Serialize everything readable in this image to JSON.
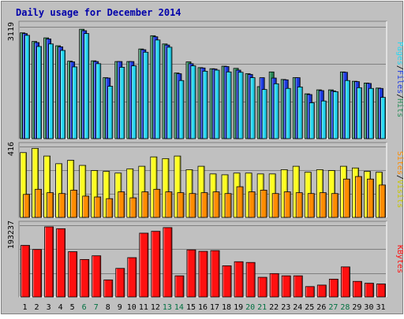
{
  "chart_data": {
    "type": "bar",
    "title": "Daily usage for December 2014",
    "x": [
      "1",
      "2",
      "3",
      "4",
      "5",
      "6",
      "7",
      "8",
      "9",
      "10",
      "11",
      "12",
      "13",
      "14",
      "15",
      "16",
      "17",
      "18",
      "19",
      "20",
      "21",
      "22",
      "23",
      "24",
      "25",
      "26",
      "27",
      "28",
      "29",
      "30",
      "31"
    ],
    "weekend_days": [
      "6",
      "7",
      "13",
      "14",
      "20",
      "21",
      "27",
      "28"
    ],
    "panels": [
      {
        "name": "hits-files-pages",
        "ymax_label": "3119",
        "ymax": 3119,
        "series": [
          {
            "name": "Hits",
            "color": "#2c8f5a",
            "values": [
              2950,
              2710,
              2810,
              2590,
              2160,
              3050,
              2170,
              1700,
              2150,
              2150,
              2500,
              2870,
              2640,
              1830,
              2140,
              1980,
              1950,
              2020,
              1960,
              1810,
              1450,
              1860,
              1650,
              1700,
              1250,
              1360,
              1360,
              1860,
              1600,
              1550,
              1410
            ]
          },
          {
            "name": "Files",
            "color": "#1d3ce6",
            "values": [
              2930,
              2680,
              2780,
              2560,
              2140,
              3010,
              2150,
              1690,
              2150,
              2150,
              2480,
              2840,
              2610,
              1810,
              2090,
              1970,
              1940,
              2010,
              1910,
              1790,
              1700,
              1690,
              1640,
              1700,
              1230,
              1340,
              1330,
              1850,
              1590,
              1540,
              1400
            ]
          },
          {
            "name": "Pages",
            "color": "#27d8f2",
            "values": [
              2880,
              2570,
              2640,
              2460,
              2000,
              2930,
              2090,
              1460,
              1990,
              2030,
              2410,
              2750,
              2550,
              1620,
              2030,
              1880,
              1910,
              1860,
              1850,
              1700,
              1370,
              1530,
              1400,
              1440,
              1000,
              1050,
              1310,
              1620,
              1420,
              1400,
              1150
            ]
          }
        ]
      },
      {
        "name": "visits-sites",
        "ymax_label": "416",
        "ymax": 416,
        "series": [
          {
            "name": "Visits",
            "color": "#ffff22",
            "values": [
              380,
              405,
              360,
              315,
              335,
              305,
              275,
              270,
              260,
              285,
              300,
              355,
              345,
              360,
              280,
              300,
              255,
              250,
              260,
              260,
              255,
              255,
              280,
              300,
              265,
              280,
              275,
              300,
              290,
              270,
              265
            ]
          },
          {
            "name": "Sites",
            "color": "#ff8c00",
            "values": [
              135,
              165,
              145,
              140,
              160,
              125,
              120,
              110,
              150,
              115,
              150,
              165,
              150,
              145,
              140,
              145,
              150,
              140,
              180,
              150,
              160,
              140,
              150,
              145,
              140,
              145,
              140,
              225,
              240,
              225,
              190
            ]
          }
        ]
      },
      {
        "name": "kbytes",
        "ymax_label": "193237",
        "ymax": 193237,
        "series": [
          {
            "name": "KBytes",
            "color": "#ff1010",
            "values": [
              139000,
              128000,
              189000,
              184000,
              122000,
              101000,
              111000,
              46000,
              77000,
              106000,
              172000,
              177000,
              187000,
              57000,
              127000,
              123000,
              125000,
              84000,
              95000,
              93000,
              53000,
              63000,
              57000,
              57000,
              28000,
              32000,
              48000,
              81000,
              42000,
              37000,
              35000
            ]
          }
        ]
      }
    ],
    "legend": {
      "top_parts": [
        "Pages",
        "Files",
        "Hits"
      ],
      "top_colors": [
        "#27d8f2",
        "#1d3ce6",
        "#2c8f5a"
      ],
      "middle_parts": [
        "Sites",
        "Visits"
      ],
      "middle_colors": [
        "#ff8c00",
        "#c8c800"
      ],
      "bottom_parts": [
        "KBytes"
      ],
      "bottom_colors": [
        "#ff1010"
      ],
      "separator": "/"
    },
    "colors": {
      "background": "#c0c0c0",
      "title": "#0000aa",
      "weekday_label": "#000000",
      "weekend_label": "#007040"
    },
    "grid": true
  }
}
